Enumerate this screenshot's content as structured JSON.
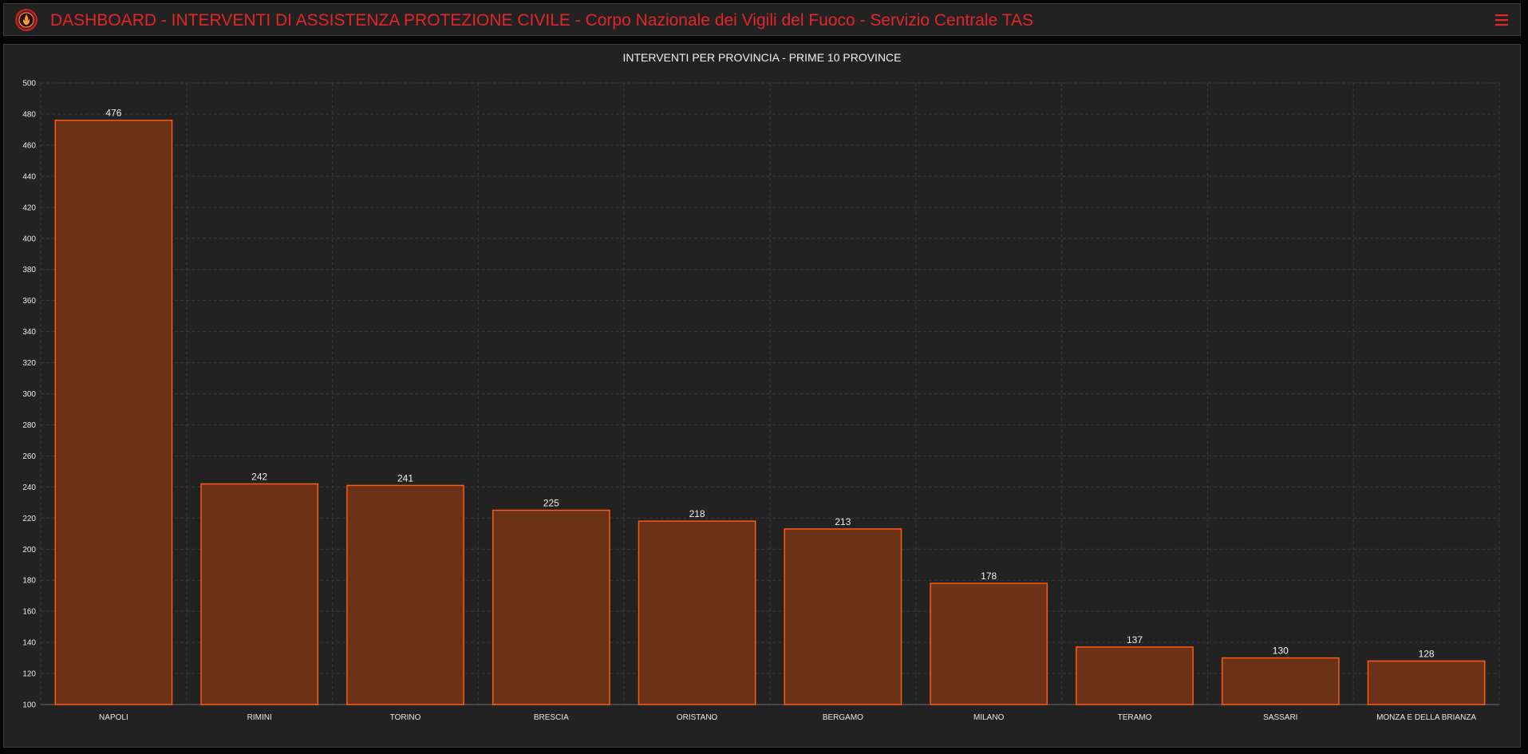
{
  "header": {
    "title": "DASHBOARD - INTERVENTI DI ASSISTENZA PROTEZIONE CIVILE - Corpo Nazionale dei Vigili del Fuoco - Servizio Centrale TAS",
    "logo_icon": "fire-brigade-emblem-icon",
    "menu_icon": "hamburger-menu-icon"
  },
  "colors": {
    "accent": "#e4252a",
    "bar_fill": "#6b3218",
    "bar_stroke": "#ff5a14",
    "panel_bg": "#222222",
    "grid": "#3a3a3a"
  },
  "chart_data": {
    "type": "bar",
    "title": "INTERVENTI PER PROVINCIA - PRIME 10 PROVINCE",
    "xlabel": "",
    "ylabel": "",
    "categories": [
      "NAPOLI",
      "RIMINI",
      "TORINO",
      "BRESCIA",
      "ORISTANO",
      "BERGAMO",
      "MILANO",
      "TERAMO",
      "SASSARI",
      "MONZA E DELLA BRIANZA"
    ],
    "values": [
      476,
      242,
      241,
      225,
      218,
      213,
      178,
      137,
      130,
      128
    ],
    "ylim": [
      100,
      500
    ],
    "y_tick_step": 20,
    "grid": true,
    "data_labels": true,
    "legend": "none"
  }
}
